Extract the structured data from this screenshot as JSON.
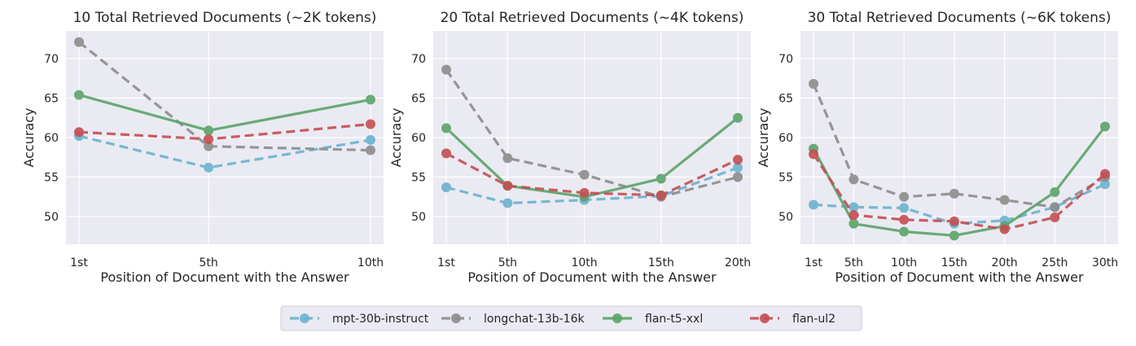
{
  "chart_data": [
    {
      "type": "line",
      "title": "10 Total Retrieved Documents (~2K tokens)",
      "xlabel": "Position of Document with the Answer",
      "ylabel": "Accuracy",
      "x": [
        1,
        5,
        10
      ],
      "xtick_labels": [
        "1st",
        "5th",
        "10th"
      ],
      "ylim": [
        46.5,
        73.5
      ],
      "yticks": [
        "50",
        "55",
        "60",
        "65",
        "70"
      ],
      "grid": true,
      "series": [
        {
          "name": "mpt-30b-instruct",
          "values": [
            60.2,
            56.2,
            59.7
          ]
        },
        {
          "name": "longchat-13b-16k",
          "values": [
            72.1,
            58.9,
            58.4
          ]
        },
        {
          "name": "flan-t5-xxl",
          "values": [
            65.4,
            60.9,
            64.8
          ]
        },
        {
          "name": "flan-ul2",
          "values": [
            60.7,
            59.8,
            61.7
          ]
        }
      ]
    },
    {
      "type": "line",
      "title": "20 Total Retrieved Documents (~4K tokens)",
      "xlabel": "Position of Document with the Answer",
      "ylabel": "Accuracy",
      "x": [
        1,
        5,
        10,
        15,
        20
      ],
      "xtick_labels": [
        "1st",
        "5th",
        "10th",
        "15th",
        "20th"
      ],
      "ylim": [
        46.5,
        73.5
      ],
      "yticks": [
        "50",
        "55",
        "60",
        "65",
        "70"
      ],
      "grid": true,
      "series": [
        {
          "name": "mpt-30b-instruct",
          "values": [
            53.7,
            51.7,
            52.1,
            52.6,
            56.2
          ]
        },
        {
          "name": "longchat-13b-16k",
          "values": [
            68.6,
            57.4,
            55.3,
            52.5,
            55.0
          ]
        },
        {
          "name": "flan-t5-xxl",
          "values": [
            61.2,
            53.9,
            52.5,
            54.8,
            62.5
          ]
        },
        {
          "name": "flan-ul2",
          "values": [
            58.0,
            53.9,
            53.0,
            52.7,
            57.2
          ]
        }
      ]
    },
    {
      "type": "line",
      "title": "30 Total Retrieved Documents (~6K tokens)",
      "xlabel": "Position of Document with the Answer",
      "ylabel": "Accuracy",
      "x": [
        1,
        5,
        10,
        15,
        20,
        25,
        30
      ],
      "xtick_labels": [
        "1st",
        "5th",
        "10th",
        "15th",
        "20th",
        "25th",
        "30th"
      ],
      "ylim": [
        46.5,
        73.5
      ],
      "yticks": [
        "50",
        "55",
        "60",
        "65",
        "70"
      ],
      "grid": true,
      "series": [
        {
          "name": "mpt-30b-instruct",
          "values": [
            51.5,
            51.2,
            51.1,
            49.1,
            49.5,
            51.2,
            54.1
          ]
        },
        {
          "name": "longchat-13b-16k",
          "values": [
            66.8,
            54.7,
            52.5,
            52.9,
            52.1,
            51.2,
            55.0
          ]
        },
        {
          "name": "flan-t5-xxl",
          "values": [
            58.6,
            49.1,
            48.1,
            47.6,
            48.8,
            53.1,
            61.4
          ]
        },
        {
          "name": "flan-ul2",
          "values": [
            57.9,
            50.2,
            49.6,
            49.4,
            48.4,
            49.9,
            55.4
          ]
        }
      ]
    }
  ],
  "legend": {
    "placement": "bottom-center",
    "entries": [
      "mpt-30b-instruct",
      "longchat-13b-16k",
      "flan-t5-xxl",
      "flan-ul2"
    ]
  },
  "series_styles": {
    "mpt-30b-instruct": {
      "color": "#6bb2cf",
      "dash": "dashed"
    },
    "longchat-13b-16k": {
      "color": "#8c8c8c",
      "dash": "dashed"
    },
    "flan-t5-xxl": {
      "color": "#5aa469",
      "dash": "solid"
    },
    "flan-ul2": {
      "color": "#c44e52",
      "dash": "dashed"
    }
  },
  "colors": {
    "panel_background": "#eaeaf2",
    "grid": "#ffffff",
    "text": "#262626"
  }
}
